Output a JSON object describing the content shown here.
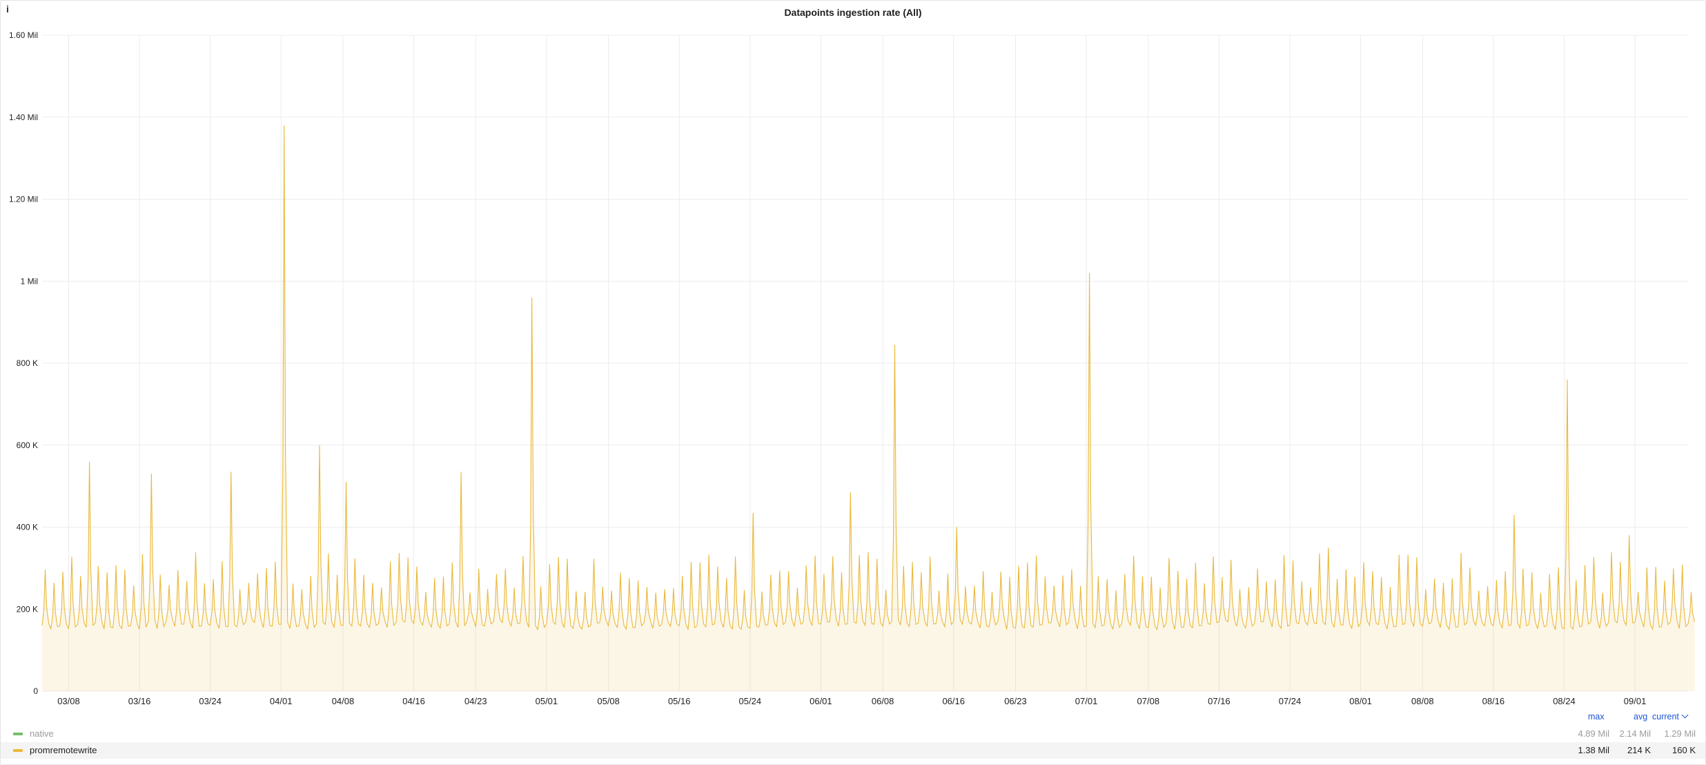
{
  "panel": {
    "info_icon": "i",
    "title": "Datapoints ingestion rate (All)"
  },
  "chart_data": {
    "type": "area",
    "title": "Datapoints ingestion rate (All)",
    "xlabel": "",
    "ylabel": "",
    "ylim": [
      0,
      1600000
    ],
    "grid": true,
    "yticks": [
      "0",
      "200 K",
      "400 K",
      "600 K",
      "800 K",
      "1 Mil",
      "1.20 Mil",
      "1.40 Mil",
      "1.60 Mil"
    ],
    "xticks": [
      "03/08",
      "03/16",
      "03/24",
      "04/01",
      "04/08",
      "04/16",
      "04/23",
      "05/01",
      "05/08",
      "05/16",
      "05/24",
      "06/01",
      "06/08",
      "06/16",
      "06/23",
      "07/01",
      "07/08",
      "07/16",
      "07/24",
      "08/01",
      "08/08",
      "08/16",
      "08/24",
      "09/01"
    ],
    "x_start": "03/05",
    "x_end": "09/07",
    "series": [
      {
        "name": "promremotewrite",
        "color": "#eab839",
        "typical_low": 160000,
        "typical_high": 330000,
        "spikes": [
          {
            "x": "03/10",
            "y": 560000
          },
          {
            "x": "03/17",
            "y": 530000
          },
          {
            "x": "03/26",
            "y": 535000
          },
          {
            "x": "04/01",
            "y": 1380000
          },
          {
            "x": "04/05",
            "y": 600000
          },
          {
            "x": "04/08",
            "y": 510000
          },
          {
            "x": "04/21",
            "y": 535000
          },
          {
            "x": "04/29",
            "y": 960000
          },
          {
            "x": "05/24",
            "y": 435000
          },
          {
            "x": "06/04",
            "y": 485000
          },
          {
            "x": "06/09",
            "y": 845000
          },
          {
            "x": "06/16",
            "y": 400000
          },
          {
            "x": "07/01",
            "y": 1020000
          },
          {
            "x": "07/28",
            "y": 350000
          },
          {
            "x": "08/18",
            "y": 430000
          },
          {
            "x": "08/24",
            "y": 760000
          },
          {
            "x": "08/31",
            "y": 380000
          }
        ]
      },
      {
        "name": "native",
        "color": "#73bf69"
      }
    ]
  },
  "legend": {
    "headers": {
      "max": "max",
      "avg": "avg",
      "current": "current"
    },
    "rows": [
      {
        "name": "native",
        "color": "#73bf69",
        "max": "4.89 Mil",
        "avg": "2.14 Mil",
        "current": "1.29 Mil"
      },
      {
        "name": "promremotewrite",
        "color": "#eab839",
        "max": "1.38 Mil",
        "avg": "214 K",
        "current": "160 K"
      }
    ]
  }
}
